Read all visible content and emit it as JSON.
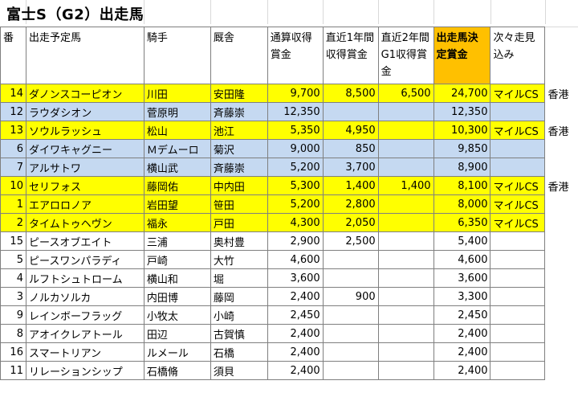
{
  "title": "富士S（G2）出走馬",
  "headers": [
    "番",
    "出走予定馬",
    "騎手",
    "厩舎",
    "通算収得賞金",
    "直近1年間収得賞金",
    "直近2年間G1収得賞金",
    "出走馬決定賞金",
    "次々走見込み",
    ""
  ],
  "colors": {
    "highlight_yellow": "#ffff00",
    "highlight_blue": "#c5d9f1",
    "header_orange": "#ffc000"
  },
  "rows": [
    {
      "hl": "y",
      "num": "14",
      "horse": "ダノンスコーピオン",
      "jockey": "川田",
      "stable": "安田隆",
      "total": "9,700",
      "y1": "8,500",
      "g1": "6,500",
      "decide": "24,700",
      "next": "マイルCS",
      "extra": "香港"
    },
    {
      "hl": "b",
      "num": "12",
      "horse": "ラウダシオン",
      "jockey": "菅原明",
      "stable": "斉藤崇",
      "total": "12,350",
      "y1": "",
      "g1": "",
      "decide": "12,350",
      "next": "",
      "extra": ""
    },
    {
      "hl": "y",
      "num": "13",
      "horse": "ソウルラッシュ",
      "jockey": "松山",
      "stable": "池江",
      "total": "5,350",
      "y1": "4,950",
      "g1": "",
      "decide": "10,300",
      "next": "マイルCS",
      "extra": "香港"
    },
    {
      "hl": "b",
      "num": "6",
      "horse": "ダイワキャグニー",
      "jockey": "Ｍデムーロ",
      "stable": "菊沢",
      "total": "9,000",
      "y1": "850",
      "g1": "",
      "decide": "9,850",
      "next": "",
      "extra": ""
    },
    {
      "hl": "b",
      "num": "7",
      "horse": "アルサトワ",
      "jockey": "横山武",
      "stable": "斉藤崇",
      "total": "5,200",
      "y1": "3,700",
      "g1": "",
      "decide": "8,900",
      "next": "",
      "extra": ""
    },
    {
      "hl": "y",
      "num": "10",
      "horse": "セリフォス",
      "jockey": "藤岡佑",
      "stable": "中内田",
      "total": "5,300",
      "y1": "1,400",
      "g1": "1,400",
      "decide": "8,100",
      "next": "マイルCS",
      "extra": "香港"
    },
    {
      "hl": "y",
      "num": "1",
      "horse": "エアロロノア",
      "jockey": "岩田望",
      "stable": "笹田",
      "total": "5,200",
      "y1": "2,800",
      "g1": "",
      "decide": "8,000",
      "next": "マイルCS",
      "extra": ""
    },
    {
      "hl": "y",
      "num": "2",
      "horse": "タイムトゥヘヴン",
      "jockey": "福永",
      "stable": "戸田",
      "total": "4,300",
      "y1": "2,050",
      "g1": "",
      "decide": "6,350",
      "next": "マイルCS",
      "extra": ""
    },
    {
      "hl": "",
      "num": "15",
      "horse": "ピースオブエイト",
      "jockey": "三浦",
      "stable": "奥村豊",
      "total": "2,900",
      "y1": "2,500",
      "g1": "",
      "decide": "5,400",
      "next": "",
      "extra": ""
    },
    {
      "hl": "",
      "num": "5",
      "horse": "ピースワンパラディ",
      "jockey": "戸崎",
      "stable": "大竹",
      "total": "4,600",
      "y1": "",
      "g1": "",
      "decide": "4,600",
      "next": "",
      "extra": ""
    },
    {
      "hl": "",
      "num": "4",
      "horse": "ルフトシュトローム",
      "jockey": "横山和",
      "stable": "堀",
      "total": "3,600",
      "y1": "",
      "g1": "",
      "decide": "3,600",
      "next": "",
      "extra": ""
    },
    {
      "hl": "",
      "num": "3",
      "horse": "ノルカソルカ",
      "jockey": "内田博",
      "stable": "藤岡",
      "total": "2,400",
      "y1": "900",
      "g1": "",
      "decide": "3,300",
      "next": "",
      "extra": ""
    },
    {
      "hl": "",
      "num": "9",
      "horse": "レインボーフラッグ",
      "jockey": "小牧太",
      "stable": "小崎",
      "total": "2,450",
      "y1": "",
      "g1": "",
      "decide": "2,450",
      "next": "",
      "extra": ""
    },
    {
      "hl": "",
      "num": "8",
      "horse": "アオイクレアトール",
      "jockey": "田辺",
      "stable": "古賀慎",
      "total": "2,400",
      "y1": "",
      "g1": "",
      "decide": "2,400",
      "next": "",
      "extra": ""
    },
    {
      "hl": "",
      "num": "16",
      "horse": "スマートリアン",
      "jockey": "ルメール",
      "stable": "石橋",
      "total": "2,400",
      "y1": "",
      "g1": "",
      "decide": "2,400",
      "next": "",
      "extra": ""
    },
    {
      "hl": "",
      "num": "11",
      "horse": "リレーションシップ",
      "jockey": "石橋脩",
      "stable": "須貝",
      "total": "2,400",
      "y1": "",
      "g1": "",
      "decide": "2,400",
      "next": "",
      "extra": ""
    }
  ]
}
